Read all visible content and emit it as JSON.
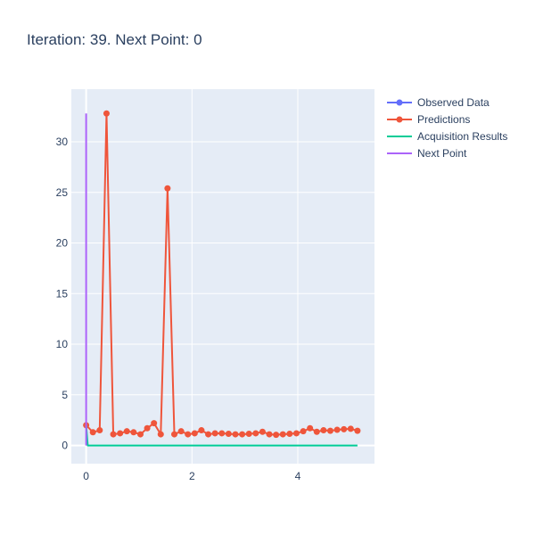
{
  "chart_data": {
    "type": "line",
    "title": "Iteration: 39. Next Point: 0",
    "xlim": [
      -0.28,
      5.45
    ],
    "ylim": [
      -1.8,
      35.2
    ],
    "xticks": [
      0,
      2,
      4
    ],
    "yticks": [
      0,
      5,
      10,
      15,
      20,
      25,
      30
    ],
    "grid": true,
    "legend_position": "right",
    "series": [
      {
        "name": "Observed Data",
        "mode": "lines+markers",
        "color": "#636efa",
        "x": [],
        "y": []
      },
      {
        "name": "Predictions",
        "mode": "lines+markers",
        "color": "#ef553b",
        "x": [
          0.0,
          0.128,
          0.256,
          0.385,
          0.513,
          0.641,
          0.769,
          0.897,
          1.026,
          1.154,
          1.282,
          1.41,
          1.538,
          1.667,
          1.795,
          1.923,
          2.051,
          2.179,
          2.308,
          2.436,
          2.564,
          2.692,
          2.821,
          2.949,
          3.077,
          3.205,
          3.333,
          3.462,
          3.59,
          3.718,
          3.846,
          3.974,
          4.103,
          4.231,
          4.359,
          4.487,
          4.615,
          4.744,
          4.872,
          5.0,
          5.128
        ],
        "y": [
          2.0,
          1.3,
          1.5,
          32.8,
          1.1,
          1.2,
          1.4,
          1.3,
          1.1,
          1.7,
          2.2,
          1.1,
          25.4,
          1.1,
          1.4,
          1.1,
          1.2,
          1.5,
          1.1,
          1.2,
          1.2,
          1.15,
          1.1,
          1.1,
          1.15,
          1.2,
          1.35,
          1.1,
          1.05,
          1.1,
          1.15,
          1.2,
          1.4,
          1.7,
          1.35,
          1.5,
          1.45,
          1.55,
          1.6,
          1.65,
          1.45
        ]
      },
      {
        "name": "Acquisition Results",
        "mode": "lines",
        "color": "#00cc96",
        "x": [
          0.0,
          0.03,
          5.128
        ],
        "y": [
          2.0,
          0.0,
          0.0
        ]
      },
      {
        "name": "Next Point",
        "mode": "lines",
        "color": "#ab63fa",
        "x": [
          0,
          0
        ],
        "y": [
          0,
          32.8
        ]
      }
    ]
  }
}
